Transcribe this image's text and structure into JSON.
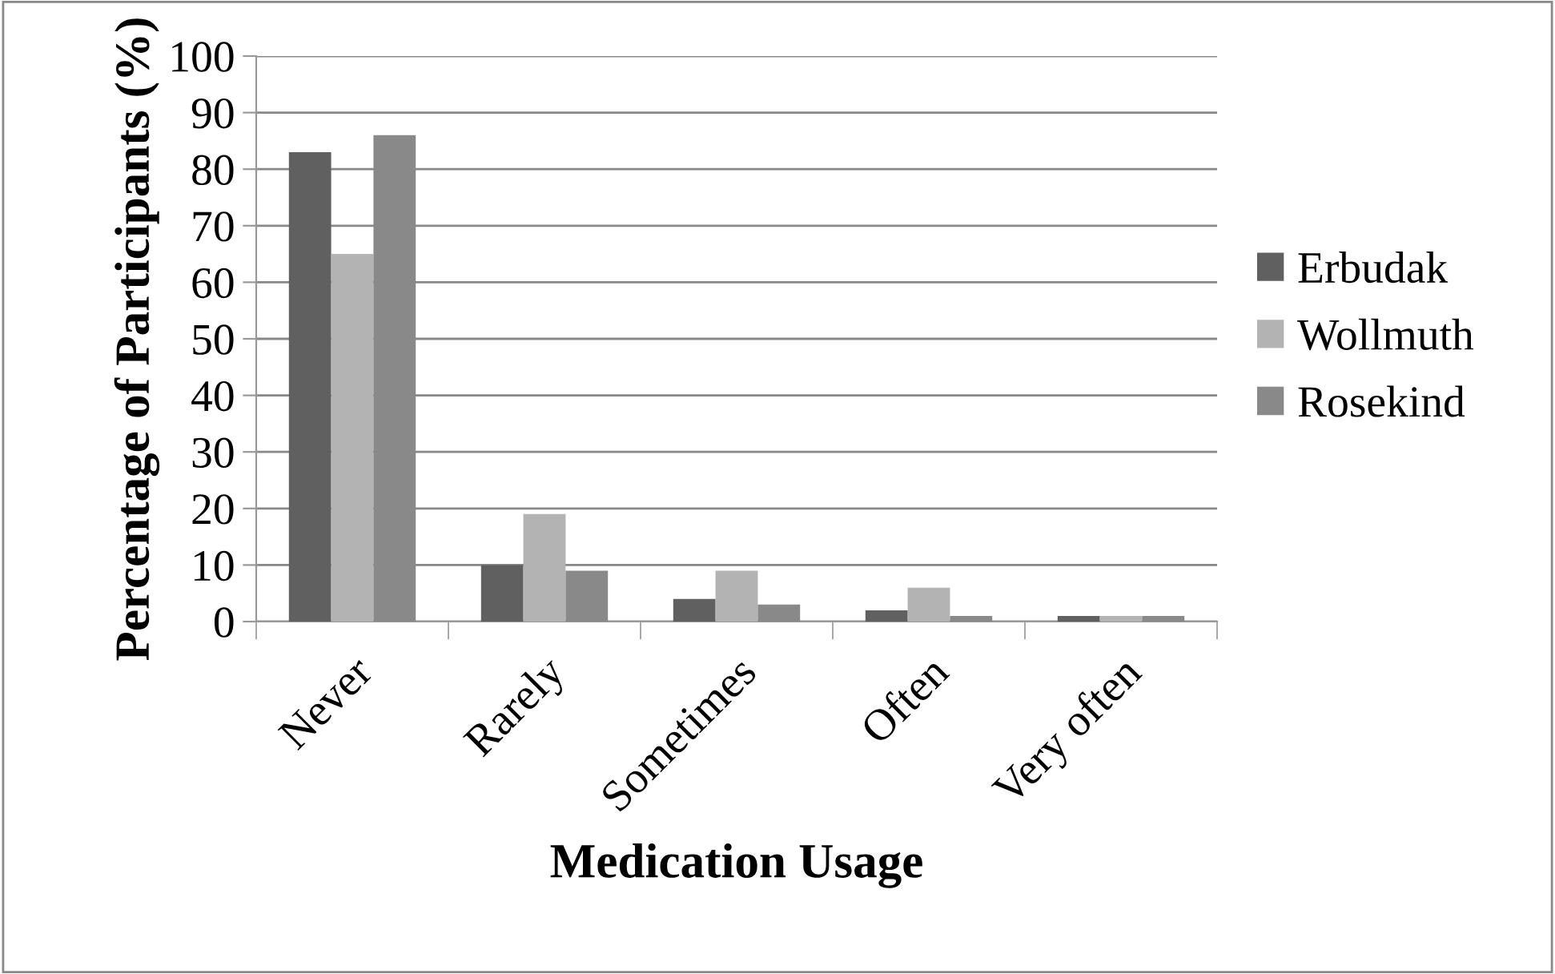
{
  "chart_data": {
    "type": "bar",
    "xlabel": "Medication Usage",
    "ylabel": "Percentage of Participants (%)",
    "categories": [
      "Never",
      "Rarely",
      "Sometimes",
      "Often",
      "Very often"
    ],
    "series": [
      {
        "name": "Erbudak",
        "color": "#606060",
        "values": [
          83,
          10,
          4,
          2,
          1
        ]
      },
      {
        "name": "Wollmuth",
        "color": "#b3b3b3",
        "values": [
          65,
          19,
          9,
          6,
          1
        ]
      },
      {
        "name": "Rosekind",
        "color": "#898989",
        "values": [
          86,
          9,
          3,
          1,
          1
        ]
      }
    ],
    "ylim": [
      0,
      100
    ],
    "yticks": [
      0,
      10,
      20,
      30,
      40,
      50,
      60,
      70,
      80,
      90,
      100
    ],
    "grid": "y",
    "legend": "right"
  }
}
